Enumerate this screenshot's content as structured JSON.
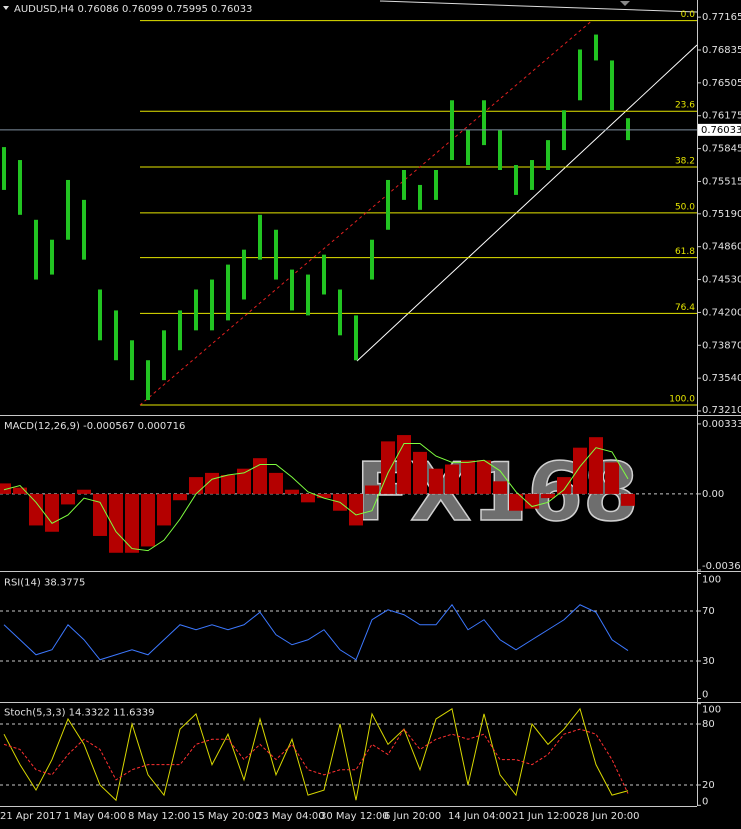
{
  "header": "AUDUSD,H4  0.76086 0.76099 0.75995 0.76033",
  "watermark": "FX168",
  "chart_data": [
    {
      "type": "range",
      "color": "#22c422",
      "categories": [
        "21 Apr 2017",
        null,
        null,
        null,
        "1 May 04:00",
        null,
        null,
        null,
        "8 May 12:00",
        null,
        null,
        null,
        "15 May 20:00",
        null,
        null,
        null,
        "23 May 04:00",
        null,
        null,
        null,
        "30 May 12:00",
        null,
        null,
        null,
        "6 Jun 20:00",
        null,
        null,
        null,
        "14 Jun 04:00",
        null,
        null,
        null,
        "21 Jun 12:00",
        null,
        null,
        null,
        "28 Jun 20:00",
        null,
        null,
        null
      ],
      "high": [
        0.7586,
        0.7573,
        0.7513,
        0.7493,
        0.7553,
        0.7533,
        0.7443,
        0.7422,
        0.7392,
        0.7372,
        0.7402,
        0.7422,
        0.7443,
        0.7453,
        0.7468,
        0.7483,
        0.7518,
        0.7503,
        0.7463,
        0.7458,
        0.7478,
        0.7443,
        0.7417,
        0.7493,
        0.7553,
        0.7563,
        0.7548,
        0.7563,
        0.7633,
        0.7603,
        0.7633,
        0.7603,
        0.7568,
        0.7573,
        0.7593,
        0.7623,
        0.7684,
        0.7699,
        0.7673,
        0.7615
      ],
      "low": [
        0.7543,
        0.7518,
        0.7453,
        0.7458,
        0.7493,
        0.7473,
        0.7392,
        0.7372,
        0.7352,
        0.7332,
        0.7352,
        0.7382,
        0.7402,
        0.7402,
        0.7412,
        0.7433,
        0.7473,
        0.7453,
        0.7422,
        0.7417,
        0.7438,
        0.7397,
        0.7372,
        0.7453,
        0.7503,
        0.7533,
        0.7523,
        0.7533,
        0.7573,
        0.7568,
        0.7588,
        0.7563,
        0.7538,
        0.7543,
        0.7563,
        0.7583,
        0.7633,
        0.7673,
        0.7623,
        0.7593
      ],
      "last": 0.76033,
      "ylim": [
        0.7318,
        0.77337
      ],
      "yticks": [
        0.77165,
        0.76835,
        0.76505,
        0.76175,
        0.75845,
        0.75515,
        {
          "value": 0.7519,
          "label": "0.75190"
        },
        {
          "value": 0.7486,
          "label": "0.74860"
        },
        {
          "value": 0.7453,
          "label": "0.74530"
        },
        {
          "value": 0.742,
          "label": "0.74200"
        },
        {
          "value": 0.7387,
          "label": "0.73870"
        },
        {
          "value": 0.7354,
          "label": "0.73540"
        },
        {
          "value": 0.7321,
          "label": "0.73210"
        }
      ],
      "fib_color": "#e6e600",
      "fib_levels": [
        {
          "value": 0.7713,
          "label": "0.0"
        },
        {
          "value": 0.7622,
          "label": "23.6"
        },
        {
          "value": 0.7566,
          "label": "38.2"
        },
        {
          "value": 0.752,
          "label": "50.0"
        },
        {
          "value": 0.7475,
          "label": "61.8"
        },
        {
          "value": 0.7419,
          "label": "76.4"
        },
        {
          "value": 0.7327,
          "label": "100.0"
        }
      ]
    },
    {
      "type": "macd",
      "title": "MACD(12,26,9) -0.000567 0.000716",
      "color": "#b40000",
      "signal_color": "#7fff40",
      "values": [
        0.0005,
        0.0003,
        -0.0015,
        -0.0018,
        -0.0005,
        0.0002,
        -0.002,
        -0.0028,
        -0.0028,
        -0.0025,
        -0.0015,
        -0.0003,
        0.0008,
        0.001,
        0.0009,
        0.0012,
        0.0017,
        0.001,
        0.0002,
        -0.0004,
        -0.0002,
        -0.0008,
        -0.0015,
        0.0004,
        0.0025,
        0.0028,
        0.002,
        0.0012,
        0.0014,
        0.0016,
        0.0016,
        0.0006,
        -0.0008,
        -0.0007,
        -0.0002,
        0.0008,
        0.0022,
        0.0027,
        0.0015,
        -0.000567
      ],
      "signal": [
        0.0002,
        0.0004,
        -0.0004,
        -0.0014,
        -0.001,
        -0.0002,
        -0.0004,
        -0.0018,
        -0.0026,
        -0.0027,
        -0.0022,
        -0.0012,
        0.0,
        0.0007,
        0.0009,
        0.001,
        0.0014,
        0.0014,
        0.0008,
        0.0001,
        -0.0002,
        -0.0004,
        -0.001,
        -0.0008,
        0.001,
        0.0024,
        0.0024,
        0.0018,
        0.0015,
        0.0015,
        0.0016,
        0.0011,
        0.0001,
        -0.0006,
        -0.0004,
        0.0002,
        0.0013,
        0.0022,
        0.002,
        0.000716
      ],
      "ylim": [
        -0.00362,
        0.00366
      ],
      "yticks": [
        0.00333,
        {
          "value": 0,
          "label": "0.00"
        },
        -0.00362
      ]
    },
    {
      "type": "line",
      "title": "RSI(14) 38.3775",
      "color": "#3c78ff",
      "values": [
        59,
        47,
        35,
        39,
        59,
        47,
        31,
        35,
        39,
        35,
        47,
        59,
        55,
        59,
        55,
        59,
        69,
        51,
        43,
        47,
        55,
        39,
        31,
        63,
        71,
        67,
        59,
        59,
        75,
        55,
        63,
        47,
        39,
        47,
        55,
        63,
        75,
        69,
        47,
        38.3775
      ],
      "ylim": [
        0,
        100
      ],
      "yticks": [
        100,
        70,
        30,
        0
      ]
    },
    {
      "type": "stoch",
      "title": "Stoch(5,3,3) 14.3322 11.6339",
      "series": [
        {
          "color": "#d8d800",
          "values": [
            70,
            40,
            15,
            45,
            85,
            60,
            20,
            5,
            80,
            30,
            10,
            75,
            90,
            40,
            70,
            25,
            85,
            30,
            65,
            10,
            15,
            80,
            5,
            90,
            60,
            75,
            35,
            85,
            95,
            20,
            90,
            30,
            10,
            80,
            60,
            75,
            95,
            40,
            10,
            14.3322
          ]
        },
        {
          "color": "#ff3030",
          "values": [
            60,
            55,
            35,
            30,
            50,
            65,
            55,
            25,
            35,
            40,
            40,
            40,
            60,
            65,
            65,
            45,
            60,
            45,
            60,
            35,
            30,
            35,
            35,
            60,
            50,
            75,
            55,
            65,
            70,
            65,
            70,
            45,
            45,
            40,
            50,
            70,
            75,
            70,
            45,
            11.6339
          ]
        }
      ],
      "ylim": [
        0,
        100
      ],
      "yticks": [
        100,
        80,
        20,
        0
      ]
    }
  ]
}
